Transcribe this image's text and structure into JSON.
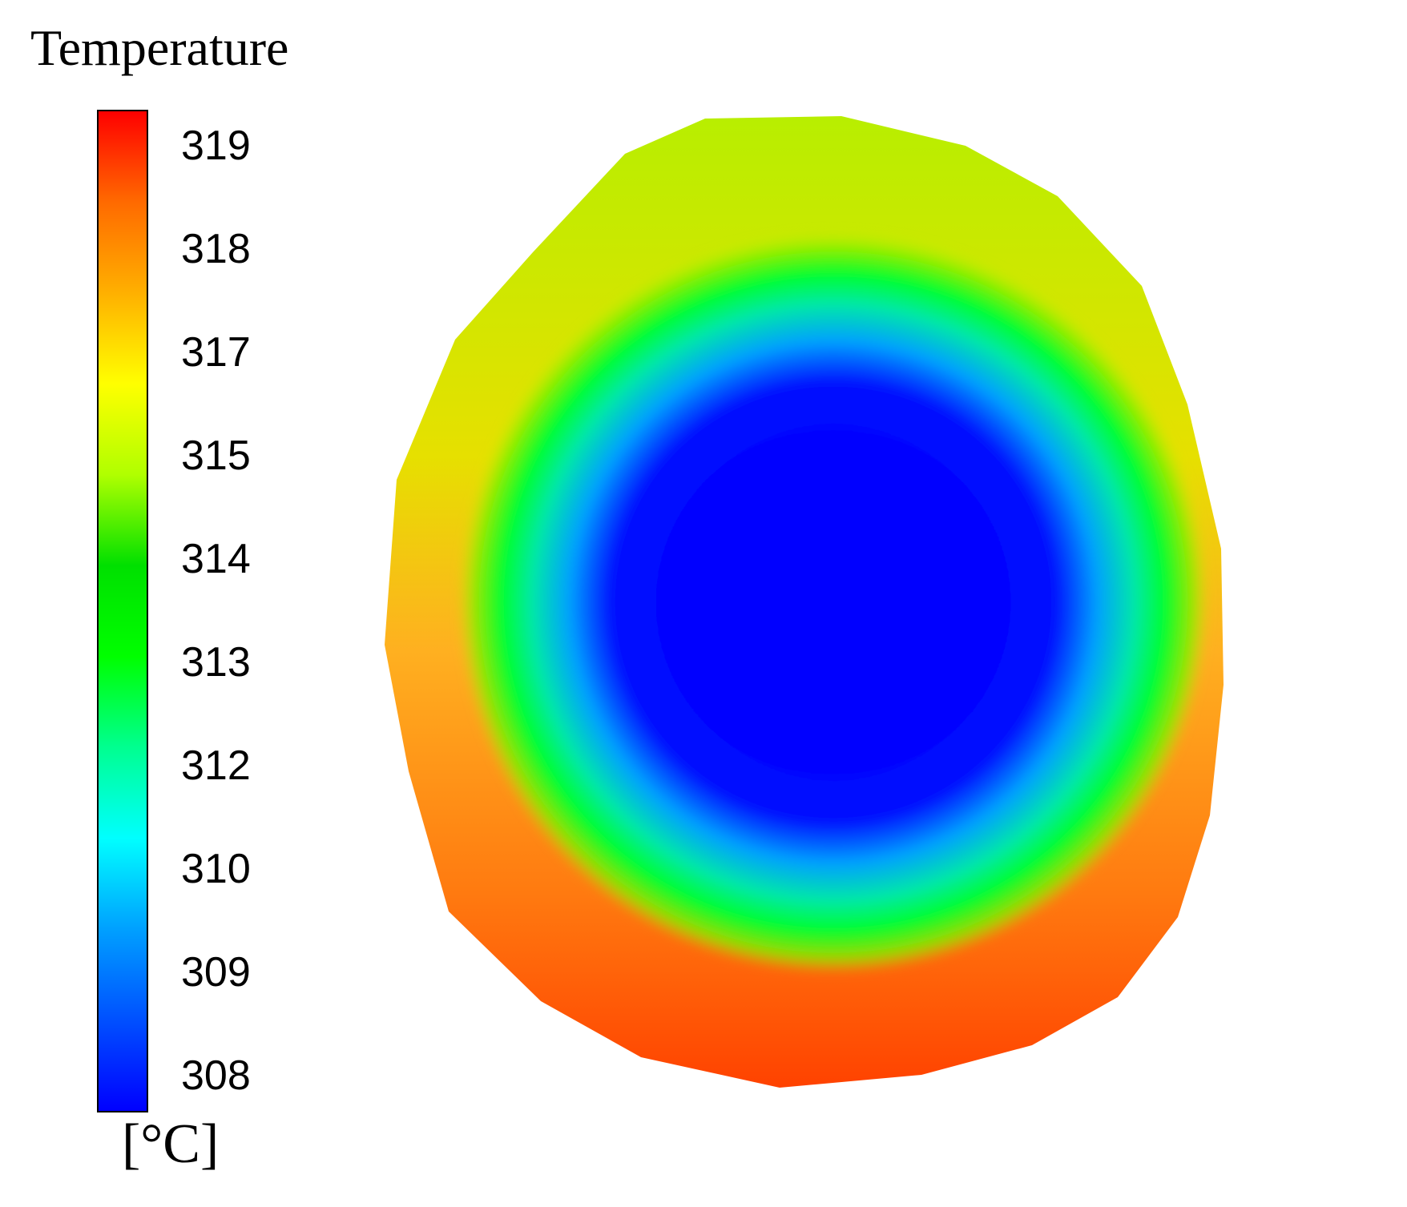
{
  "legend": {
    "title": "Temperature",
    "unit": "[°C]",
    "ticks": [
      "319",
      "318",
      "317",
      "315",
      "314",
      "313",
      "312",
      "310",
      "309",
      "308"
    ],
    "colormap": [
      "#ff0000",
      "#ff6a00",
      "#ffb000",
      "#ffff00",
      "#b0ff00",
      "#00e000",
      "#00ff00",
      "#00ff90",
      "#00ffff",
      "#00a0ff",
      "#0050ff",
      "#0000ff"
    ]
  },
  "field": {
    "center_color": "#0000ff",
    "rim_color_top": "#c8f000",
    "rim_color_bottom": "#ff4500"
  }
}
